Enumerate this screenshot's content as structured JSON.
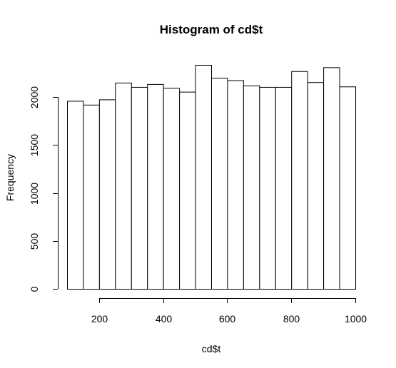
{
  "chart_data": {
    "type": "bar",
    "title": "Histogram of cd$t",
    "xlabel": "cd$t",
    "ylabel": "Frequency",
    "bin_edges": [
      100,
      150,
      200,
      250,
      300,
      350,
      400,
      450,
      500,
      550,
      600,
      650,
      700,
      750,
      800,
      850,
      900,
      950,
      1000
    ],
    "values": [
      1960,
      1920,
      1975,
      2150,
      2105,
      2135,
      2095,
      2055,
      2335,
      2200,
      2175,
      2120,
      2105,
      2105,
      2270,
      2155,
      2310,
      2110
    ],
    "x_ticks": [
      200,
      400,
      600,
      800,
      1000
    ],
    "y_ticks": [
      0,
      500,
      1000,
      1500,
      2000
    ],
    "xlim": [
      100,
      1000
    ],
    "ylim": [
      0,
      2335
    ],
    "bar_fill": "#ffffff",
    "bar_stroke": "#000000",
    "grid": false
  }
}
